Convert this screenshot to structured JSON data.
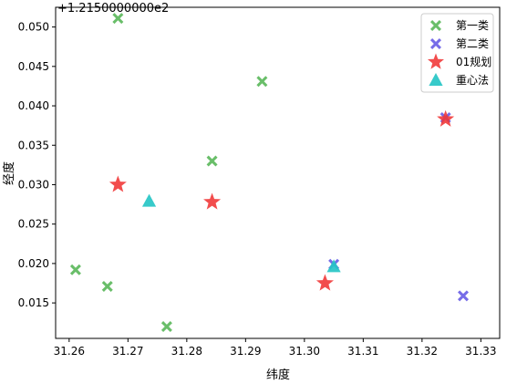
{
  "chart_data": {
    "type": "scatter",
    "title": "",
    "xlabel": "纬度",
    "ylabel": "经度",
    "y_offset_text": "+1.2150000000e2",
    "xlim": [
      31.2577,
      31.3332
    ],
    "ylim": [
      0.0105,
      0.0525
    ],
    "xticks": [
      31.26,
      31.27,
      31.28,
      31.29,
      31.3,
      31.31,
      31.32,
      31.33
    ],
    "xtick_labels": [
      "31.26",
      "31.27",
      "31.28",
      "31.29",
      "31.30",
      "31.31",
      "31.32",
      "31.33"
    ],
    "yticks": [
      0.015,
      0.02,
      0.025,
      0.03,
      0.035,
      0.04,
      0.045,
      0.05
    ],
    "ytick_labels": [
      "0.015",
      "0.020",
      "0.025",
      "0.030",
      "0.035",
      "0.040",
      "0.045",
      "0.050"
    ],
    "grid": false,
    "legend_position": "top-right",
    "series": [
      {
        "name": "第一类",
        "marker": "X",
        "color": "#5cb85c",
        "points": [
          {
            "x": 31.2683,
            "y": 0.0511
          },
          {
            "x": 31.2928,
            "y": 0.0431
          },
          {
            "x": 31.2843,
            "y": 0.033
          },
          {
            "x": 31.2611,
            "y": 0.0192
          },
          {
            "x": 31.2665,
            "y": 0.0171
          },
          {
            "x": 31.2766,
            "y": 0.012
          }
        ]
      },
      {
        "name": "第二类",
        "marker": "X",
        "color": "#6a5fe6",
        "points": [
          {
            "x": 31.305,
            "y": 0.0199
          },
          {
            "x": 31.327,
            "y": 0.0159
          },
          {
            "x": 31.324,
            "y": 0.0385
          }
        ]
      },
      {
        "name": "01规划",
        "marker": "star",
        "color": "#f03434",
        "points": [
          {
            "x": 31.2683,
            "y": 0.03
          },
          {
            "x": 31.2843,
            "y": 0.0278
          },
          {
            "x": 31.3035,
            "y": 0.0175
          },
          {
            "x": 31.324,
            "y": 0.0383
          }
        ]
      },
      {
        "name": "重心法",
        "marker": "triangle",
        "color": "#26c6c6",
        "points": [
          {
            "x": 31.2736,
            "y": 0.0279
          },
          {
            "x": 31.305,
            "y": 0.0196
          }
        ]
      }
    ]
  }
}
